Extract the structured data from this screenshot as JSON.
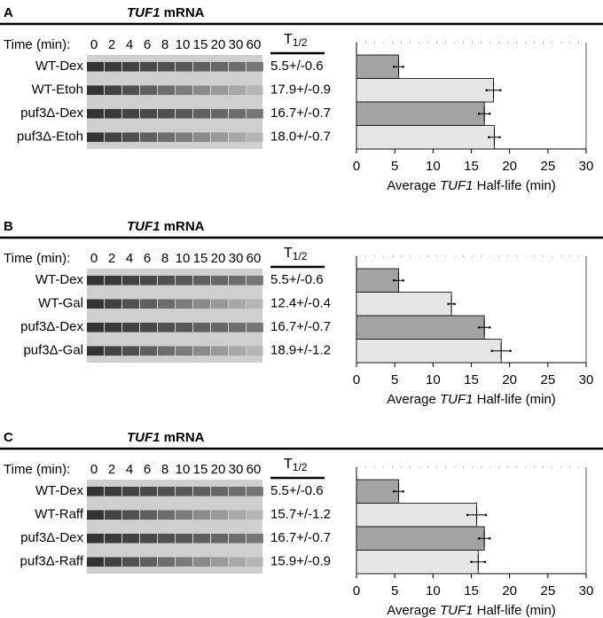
{
  "panels": [
    {
      "letter": "A",
      "title": [
        "TUF1",
        " mRNA"
      ],
      "time_label": "Time (min):",
      "lanes": [
        0,
        2,
        4,
        6,
        8,
        10,
        15,
        20,
        30,
        60
      ],
      "t_header": [
        "T",
        "1/2"
      ]
    },
    {
      "letter": "B",
      "title": [
        "TUF1",
        " mRNA"
      ],
      "time_label": "Time (min):",
      "lanes": [
        0,
        2,
        4,
        6,
        8,
        10,
        15,
        20,
        30,
        60
      ],
      "t_header": [
        "T",
        "1/2"
      ]
    },
    {
      "letter": "C",
      "title": [
        "TUF1",
        " mRNA"
      ],
      "time_label": "Time (min):",
      "lanes": [
        0,
        2,
        4,
        6,
        8,
        10,
        15,
        20,
        30,
        60
      ],
      "t_header": [
        "T",
        "1/2"
      ]
    }
  ],
  "chart_data": [
    {
      "type": "bar",
      "orientation": "horizontal",
      "categories": [
        "WT-Dex",
        "WT-Etoh",
        "puf3Δ-Dex",
        "puf3Δ-Etoh"
      ],
      "values": [
        5.5,
        17.9,
        16.7,
        18.0
      ],
      "errors": [
        0.6,
        0.9,
        0.7,
        0.7
      ],
      "value_labels": [
        "5.5+/-0.6",
        "17.9+/-0.9",
        "16.7+/-0.7",
        "18.0+/-0.7"
      ],
      "colors": [
        "#a3a3a3",
        "#e6e6e6",
        "#a3a3a3",
        "#e6e6e6"
      ],
      "xlim": [
        0,
        30
      ],
      "xticks": [
        0,
        5,
        10,
        15,
        20,
        25,
        30
      ],
      "xlabel": [
        "Average ",
        "TUF1",
        " Half-life (min)"
      ]
    },
    {
      "type": "bar",
      "orientation": "horizontal",
      "categories": [
        "WT-Dex",
        "WT-Gal",
        "puf3Δ-Dex",
        "puf3Δ-Gal"
      ],
      "values": [
        5.5,
        12.4,
        16.7,
        18.9
      ],
      "errors": [
        0.6,
        0.4,
        0.7,
        1.2
      ],
      "value_labels": [
        "5.5+/-0.6",
        "12.4+/-0.4",
        "16.7+/-0.7",
        "18.9+/-1.2"
      ],
      "colors": [
        "#a3a3a3",
        "#e6e6e6",
        "#a3a3a3",
        "#e6e6e6"
      ],
      "xlim": [
        0,
        30
      ],
      "xticks": [
        0,
        5,
        10,
        15,
        20,
        25,
        30
      ],
      "xlabel": [
        "Average ",
        "TUF1",
        " Half-life (min)"
      ]
    },
    {
      "type": "bar",
      "orientation": "horizontal",
      "categories": [
        "WT-Dex",
        "WT-Raff",
        "puf3Δ-Dex",
        "puf3Δ-Raff"
      ],
      "values": [
        5.5,
        15.7,
        16.7,
        15.9
      ],
      "errors": [
        0.6,
        1.2,
        0.7,
        0.9
      ],
      "value_labels": [
        "5.5+/-0.6",
        "15.7+/-1.2",
        "16.7+/-0.7",
        "15.9+/-0.9"
      ],
      "colors": [
        "#a3a3a3",
        "#e6e6e6",
        "#a3a3a3",
        "#e6e6e6"
      ],
      "xlim": [
        0,
        30
      ],
      "xticks": [
        0,
        5,
        10,
        15,
        20,
        25,
        30
      ],
      "xlabel": [
        "Average ",
        "TUF1",
        " Half-life (min)"
      ]
    }
  ]
}
